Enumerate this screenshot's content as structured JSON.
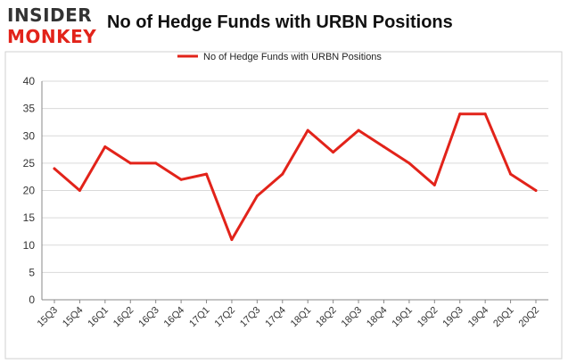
{
  "logo": {
    "top": "INSIDER",
    "bottom": "MONKEY"
  },
  "chart_data": {
    "type": "line",
    "title": "No of Hedge Funds with URBN Positions",
    "categories": [
      "15Q3",
      "15Q4",
      "16Q1",
      "16Q2",
      "16Q3",
      "16Q4",
      "17Q1",
      "17Q2",
      "17Q3",
      "17Q4",
      "18Q1",
      "18Q2",
      "18Q3",
      "18Q4",
      "19Q1",
      "19Q2",
      "19Q3",
      "19Q4",
      "20Q1",
      "20Q2"
    ],
    "series": [
      {
        "name": "No of Hedge Funds with URBN Positions",
        "values": [
          24,
          20,
          28,
          25,
          25,
          22,
          23,
          11,
          19,
          23,
          31,
          27,
          31,
          28,
          25,
          21,
          34,
          34,
          23,
          20
        ]
      }
    ],
    "ylim": [
      0,
      40
    ],
    "yticks": [
      0,
      5,
      10,
      15,
      20,
      25,
      30,
      35,
      40
    ],
    "grid": true,
    "legend": "top-center",
    "colors": {
      "line": "#e2231a",
      "grid": "#d9d9d9",
      "axis": "#888888",
      "frame": "#d0d0d0"
    }
  }
}
